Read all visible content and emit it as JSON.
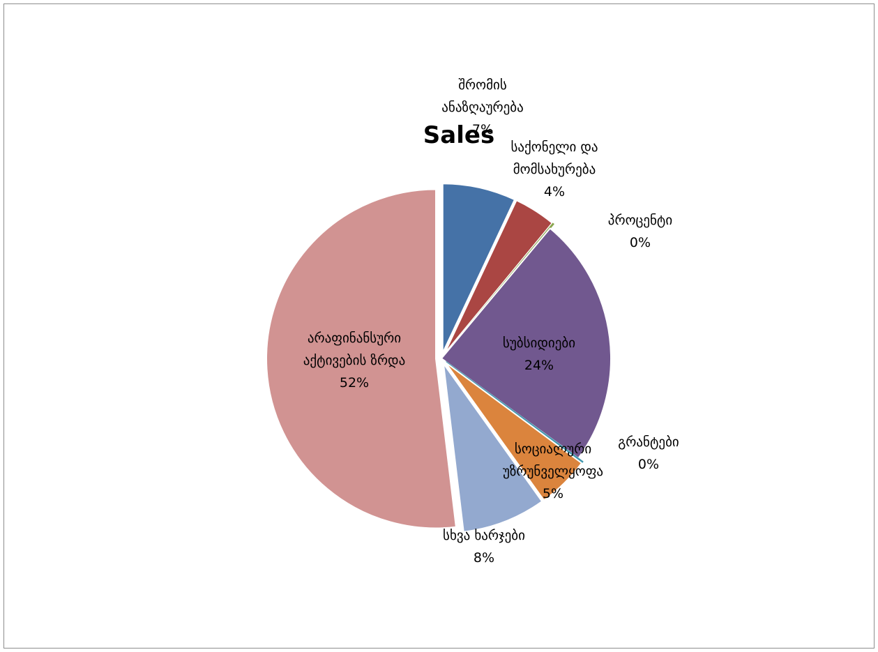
{
  "chart_data": {
    "type": "pie",
    "title": "Sales",
    "slices": [
      {
        "label_lines": [
          "შრომის",
          "ანაზღაურება"
        ],
        "value": 7,
        "percent_label": "7%",
        "color": "#4572a7",
        "exploded": true
      },
      {
        "label_lines": [
          "საქონელი და",
          "მომსახურება"
        ],
        "value": 4,
        "percent_label": "4%",
        "color": "#aa4643",
        "exploded": true
      },
      {
        "label_lines": [
          "პროცენტი"
        ],
        "value": 0.1,
        "percent_label": "0%",
        "color": "#89a54e",
        "exploded": true
      },
      {
        "label_lines": [
          "სუბსიდიები"
        ],
        "value": 24,
        "percent_label": "24%",
        "color": "#71588f",
        "exploded": false
      },
      {
        "label_lines": [
          "გრანტები"
        ],
        "value": 0.1,
        "percent_label": "0%",
        "color": "#4198af",
        "exploded": true
      },
      {
        "label_lines": [
          "სოციალური",
          "უზრუნველყოფა"
        ],
        "value": 5,
        "percent_label": "5%",
        "color": "#db843d",
        "exploded": true
      },
      {
        "label_lines": [
          "სხვა ხარჯები"
        ],
        "value": 8,
        "percent_label": "8%",
        "color": "#93a9cf",
        "exploded": true
      },
      {
        "label_lines": [
          "არაფინანსური",
          "აქტივების ზრდა"
        ],
        "value": 52,
        "percent_label": "52%",
        "color": "#d19392",
        "exploded": true
      }
    ]
  }
}
